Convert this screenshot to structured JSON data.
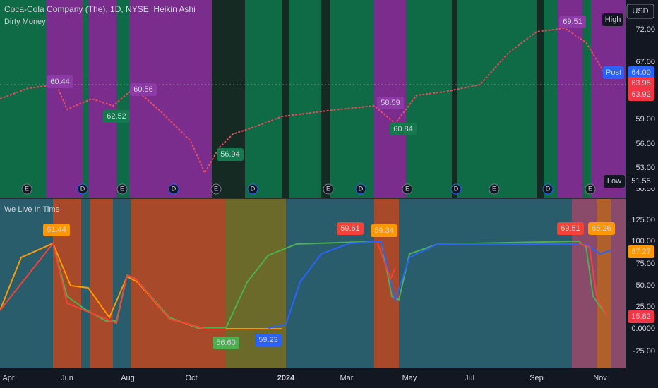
{
  "header": {
    "symbol": "Coca-Cola Company (The), 1D, NYSE, Heikin Ashi",
    "indicator": "Dirty Money",
    "currency": "USD"
  },
  "lower_pane": {
    "title": "We Live In Time"
  },
  "price_axis": [
    "72.00",
    "67.00",
    "59.00",
    "56.00",
    "53.00",
    "50.50"
  ],
  "price_badges": [
    {
      "tag": "High"
    },
    {
      "tag": "Post",
      "value": "64.00"
    },
    {
      "value": "63.95"
    },
    {
      "value": "63.92"
    },
    {
      "tag": "Low",
      "value": "51.55"
    }
  ],
  "price_callouts": [
    "60.44",
    "60.56",
    "62.52",
    "56.94",
    "58.59",
    "60.84",
    "69.51"
  ],
  "osc_axis": [
    "125.00",
    "100.00",
    "75.00",
    "50.00",
    "25.00",
    "0.0000",
    "-25.00"
  ],
  "osc_badges": [
    "87.27",
    "15.82"
  ],
  "osc_callouts": [
    "61.44",
    "59.61",
    "59.34",
    "56.60",
    "59.23",
    "69.51",
    "65.26"
  ],
  "events": [
    "E",
    "D",
    "E",
    "D",
    "E",
    "D",
    "E",
    "D",
    "E",
    "D",
    "E",
    "D",
    "E"
  ],
  "dates": [
    "Apr",
    "Jun",
    "Aug",
    "Oct",
    "2024",
    "Mar",
    "May",
    "Jul",
    "Sep",
    "Nov"
  ]
}
